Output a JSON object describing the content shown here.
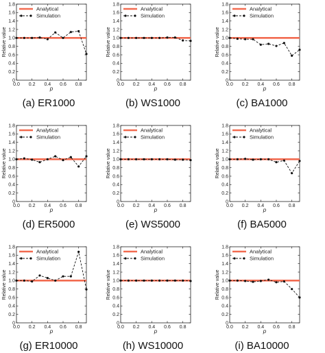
{
  "colors": {
    "analytical": "#f26b50",
    "simulation": "#111111",
    "axis": "#222222"
  },
  "chart_data": [
    {
      "type": "line",
      "caption": "(a) ER1000",
      "xlabel": "p",
      "ylabel": "Relative value",
      "xlim": [
        0,
        0.9
      ],
      "ylim": [
        0,
        1.8
      ],
      "xticks": [
        "0.0",
        "0.2",
        "0.4",
        "0.6",
        "0.8"
      ],
      "yticks": [
        "0",
        "0.2",
        "0.4",
        "0.6",
        "0.8",
        "1.0",
        "1.2",
        "1.4",
        "1.6",
        "1.8"
      ],
      "legend": "top-left",
      "grid": false,
      "series": [
        {
          "name": "Analytical",
          "style": "solid",
          "x": [
            0,
            0.9
          ],
          "y": [
            1.0,
            1.0
          ]
        },
        {
          "name": "Simulation",
          "style": "dashed-markers",
          "x": [
            0,
            0.1,
            0.2,
            0.3,
            0.4,
            0.5,
            0.6,
            0.7,
            0.8,
            0.9
          ],
          "y": [
            1.0,
            1.0,
            1.0,
            1.01,
            0.97,
            1.13,
            1.0,
            1.14,
            1.16,
            0.62
          ]
        }
      ]
    },
    {
      "type": "line",
      "caption": "(b) WS1000",
      "xlabel": "p",
      "ylabel": "Relative value",
      "xlim": [
        0,
        0.9
      ],
      "ylim": [
        0,
        1.8
      ],
      "xticks": [
        "0.0",
        "0.2",
        "0.4",
        "0.6",
        "0.8"
      ],
      "yticks": [
        "0",
        "0.2",
        "0.4",
        "0.6",
        "0.8",
        "1.0",
        "1.2",
        "1.4",
        "1.6",
        "1.8"
      ],
      "legend": "top-left",
      "grid": false,
      "series": [
        {
          "name": "Analytical",
          "style": "solid",
          "x": [
            0,
            0.9
          ],
          "y": [
            1.0,
            1.0
          ]
        },
        {
          "name": "Simulation",
          "style": "dashed-markers",
          "x": [
            0,
            0.1,
            0.2,
            0.3,
            0.4,
            0.5,
            0.6,
            0.7,
            0.8,
            0.9
          ],
          "y": [
            1.0,
            1.0,
            1.0,
            1.0,
            1.0,
            1.0,
            1.01,
            1.01,
            0.94,
            0.93
          ]
        }
      ]
    },
    {
      "type": "line",
      "caption": "(c) BA1000",
      "xlabel": "p",
      "ylabel": "Relative value",
      "xlim": [
        0,
        0.9
      ],
      "ylim": [
        0,
        1.8
      ],
      "xticks": [
        "0.0",
        "0.2",
        "0.4",
        "0.6",
        "0.8"
      ],
      "yticks": [
        "0",
        "0.2",
        "0.4",
        "0.6",
        "0.8",
        "1.0",
        "1.2",
        "1.4",
        "1.6",
        "1.8"
      ],
      "legend": "top-left",
      "grid": false,
      "series": [
        {
          "name": "Analytical",
          "style": "solid",
          "x": [
            0,
            0.9
          ],
          "y": [
            1.0,
            1.0
          ]
        },
        {
          "name": "Simulation",
          "style": "dashed-markers",
          "x": [
            0,
            0.1,
            0.2,
            0.3,
            0.4,
            0.5,
            0.6,
            0.7,
            0.8,
            0.9
          ],
          "y": [
            1.0,
            0.98,
            0.97,
            0.97,
            0.84,
            0.86,
            0.81,
            0.88,
            0.58,
            0.72
          ]
        }
      ]
    },
    {
      "type": "line",
      "caption": "(d) ER5000",
      "xlabel": "p",
      "ylabel": "Relative value",
      "xlim": [
        0,
        0.9
      ],
      "ylim": [
        0,
        1.8
      ],
      "xticks": [
        "0.0",
        "0.2",
        "0.4",
        "0.6",
        "0.8"
      ],
      "yticks": [
        "0",
        "0.2",
        "0.4",
        "0.6",
        "0.8",
        "1.0",
        "1.2",
        "1.4",
        "1.6",
        "1.8"
      ],
      "legend": "top-left",
      "grid": false,
      "series": [
        {
          "name": "Analytical",
          "style": "solid",
          "x": [
            0,
            0.9
          ],
          "y": [
            1.0,
            1.0
          ]
        },
        {
          "name": "Simulation",
          "style": "dashed-markers",
          "x": [
            0,
            0.1,
            0.2,
            0.3,
            0.4,
            0.5,
            0.6,
            0.7,
            0.8,
            0.9
          ],
          "y": [
            1.0,
            1.02,
            0.99,
            0.93,
            1.0,
            1.07,
            0.98,
            1.05,
            0.83,
            1.07
          ]
        }
      ]
    },
    {
      "type": "line",
      "caption": "(e) WS5000",
      "xlabel": "p",
      "ylabel": "Relative value",
      "xlim": [
        0,
        0.9
      ],
      "ylim": [
        0,
        1.8
      ],
      "xticks": [
        "0.0",
        "0.2",
        "0.4",
        "0.6",
        "0.8"
      ],
      "yticks": [
        "0",
        "0.2",
        "0.4",
        "0.6",
        "0.8",
        "1.0",
        "1.2",
        "1.4",
        "1.6",
        "1.8"
      ],
      "legend": "top-left",
      "grid": false,
      "series": [
        {
          "name": "Analytical",
          "style": "solid",
          "x": [
            0,
            0.9
          ],
          "y": [
            1.0,
            1.0
          ]
        },
        {
          "name": "Simulation",
          "style": "dashed-markers",
          "x": [
            0,
            0.1,
            0.2,
            0.3,
            0.4,
            0.5,
            0.6,
            0.7,
            0.8,
            0.9
          ],
          "y": [
            1.0,
            1.0,
            1.0,
            1.0,
            1.0,
            1.0,
            1.0,
            0.99,
            0.99,
            0.98
          ]
        }
      ]
    },
    {
      "type": "line",
      "caption": "(f) BA5000",
      "xlabel": "p",
      "ylabel": "Relative value",
      "xlim": [
        0,
        0.9
      ],
      "ylim": [
        0,
        1.8
      ],
      "xticks": [
        "0.0",
        "0.2",
        "0.4",
        "0.6",
        "0.8"
      ],
      "yticks": [
        "0",
        "0.2",
        "0.4",
        "0.6",
        "0.8",
        "1.0",
        "1.2",
        "1.4",
        "1.6",
        "1.8"
      ],
      "legend": "top-left",
      "grid": false,
      "series": [
        {
          "name": "Analytical",
          "style": "solid",
          "x": [
            0,
            0.9
          ],
          "y": [
            1.0,
            1.0
          ]
        },
        {
          "name": "Simulation",
          "style": "dashed-markers",
          "x": [
            0,
            0.1,
            0.2,
            0.3,
            0.4,
            0.5,
            0.6,
            0.7,
            0.8,
            0.9
          ],
          "y": [
            1.0,
            1.0,
            1.01,
            0.99,
            1.0,
            1.0,
            0.93,
            0.97,
            0.67,
            0.96
          ]
        }
      ]
    },
    {
      "type": "line",
      "caption": "(g) ER10000",
      "xlabel": "p",
      "ylabel": "Relative value",
      "xlim": [
        0,
        0.9
      ],
      "ylim": [
        0,
        1.8
      ],
      "xticks": [
        "0.0",
        "0.2",
        "0.4",
        "0.6",
        "0.8"
      ],
      "yticks": [
        "0",
        "0.2",
        "0.4",
        "0.6",
        "0.8",
        "1.0",
        "1.2",
        "1.4",
        "1.6",
        "1.8"
      ],
      "legend": "top-left",
      "grid": false,
      "series": [
        {
          "name": "Analytical",
          "style": "solid",
          "x": [
            0,
            0.9
          ],
          "y": [
            1.0,
            1.0
          ]
        },
        {
          "name": "Simulation",
          "style": "dashed-markers",
          "x": [
            0,
            0.1,
            0.2,
            0.3,
            0.4,
            0.5,
            0.6,
            0.7,
            0.8,
            0.9
          ],
          "y": [
            1.0,
            1.0,
            0.98,
            1.12,
            1.06,
            1.0,
            1.1,
            1.1,
            1.68,
            0.79
          ]
        }
      ]
    },
    {
      "type": "line",
      "caption": "(h) WS10000",
      "xlabel": "p",
      "ylabel": "Relative value",
      "xlim": [
        0,
        0.9
      ],
      "ylim": [
        0,
        1.8
      ],
      "xticks": [
        "0.0",
        "0.2",
        "0.4",
        "0.6",
        "0.8"
      ],
      "yticks": [
        "0",
        "0.2",
        "0.4",
        "0.6",
        "0.8",
        "1.0",
        "1.2",
        "1.4",
        "1.6",
        "1.8"
      ],
      "legend": "top-left",
      "grid": false,
      "series": [
        {
          "name": "Analytical",
          "style": "solid",
          "x": [
            0,
            0.9
          ],
          "y": [
            1.0,
            1.0
          ]
        },
        {
          "name": "Simulation",
          "style": "dashed-markers",
          "x": [
            0,
            0.1,
            0.2,
            0.3,
            0.4,
            0.5,
            0.6,
            0.7,
            0.8,
            0.9
          ],
          "y": [
            1.0,
            1.0,
            1.0,
            1.0,
            1.0,
            1.0,
            1.0,
            1.0,
            1.0,
            0.99
          ]
        }
      ]
    },
    {
      "type": "line",
      "caption": "(i) BA10000",
      "xlabel": "p",
      "ylabel": "Relative value",
      "xlim": [
        0,
        0.9
      ],
      "ylim": [
        0,
        1.8
      ],
      "xticks": [
        "0.0",
        "0.2",
        "0.4",
        "0.6",
        "0.8"
      ],
      "yticks": [
        "0",
        "0.2",
        "0.4",
        "0.6",
        "0.8",
        "1.0",
        "1.2",
        "1.4",
        "1.6",
        "1.8"
      ],
      "legend": "top-left",
      "grid": false,
      "series": [
        {
          "name": "Analytical",
          "style": "solid",
          "x": [
            0,
            0.9
          ],
          "y": [
            1.0,
            1.0
          ]
        },
        {
          "name": "Simulation",
          "style": "dashed-markers",
          "x": [
            0,
            0.1,
            0.2,
            0.3,
            0.4,
            0.5,
            0.6,
            0.7,
            0.8,
            0.9
          ],
          "y": [
            1.0,
            1.0,
            0.99,
            0.97,
            0.99,
            1.02,
            0.96,
            0.98,
            0.8,
            0.6
          ]
        }
      ]
    }
  ]
}
